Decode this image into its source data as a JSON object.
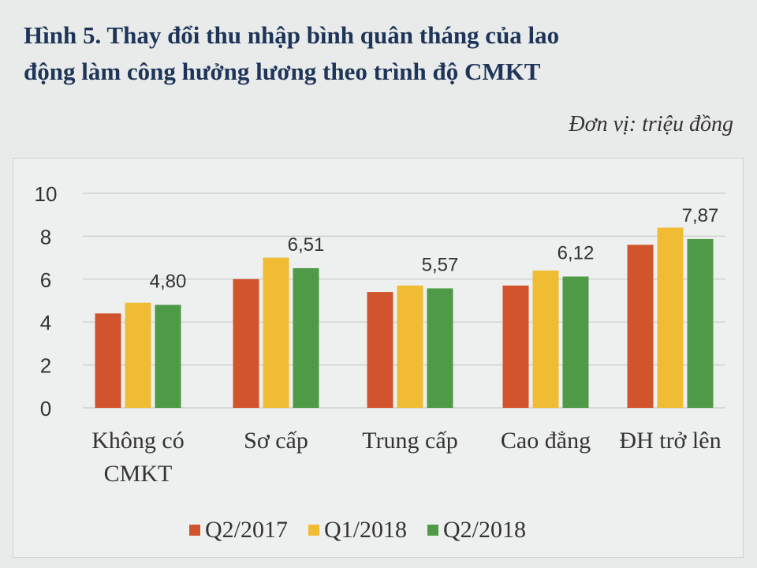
{
  "title": {
    "line1": "Hình 5. Thay đổi thu nhập bình quân tháng của lao",
    "line2": "động làm công hưởng lương theo trình độ CMKT"
  },
  "unit_label": "Đơn vị: triệu đồng",
  "colors": {
    "q2_2017": "#d2542d",
    "q1_2018": "#efbc34",
    "q2_2018": "#4e9a47",
    "grid": "#c9cbca",
    "text": "#333333"
  },
  "chart_data": {
    "type": "bar",
    "categories": [
      [
        "Không có",
        "CMKT"
      ],
      [
        "Sơ cấp"
      ],
      [
        "Trung cấp"
      ],
      [
        "Cao đẳng"
      ],
      [
        "ĐH trở lên"
      ]
    ],
    "series": [
      {
        "name": "Q2/2017",
        "values": [
          4.4,
          6.0,
          5.4,
          5.7,
          7.6
        ]
      },
      {
        "name": "Q1/2018",
        "values": [
          4.9,
          7.0,
          5.7,
          6.4,
          8.4
        ]
      },
      {
        "name": "Q2/2018",
        "values": [
          4.8,
          6.51,
          5.57,
          6.12,
          7.87
        ]
      }
    ],
    "data_labels": [
      "4,80",
      "6,51",
      "5,57",
      "6,12",
      "7,87"
    ],
    "data_label_series": 2,
    "ylim": [
      0,
      10
    ],
    "yticks": [
      0,
      2,
      4,
      6,
      8,
      10
    ],
    "grid": true,
    "legend_position": "bottom"
  }
}
